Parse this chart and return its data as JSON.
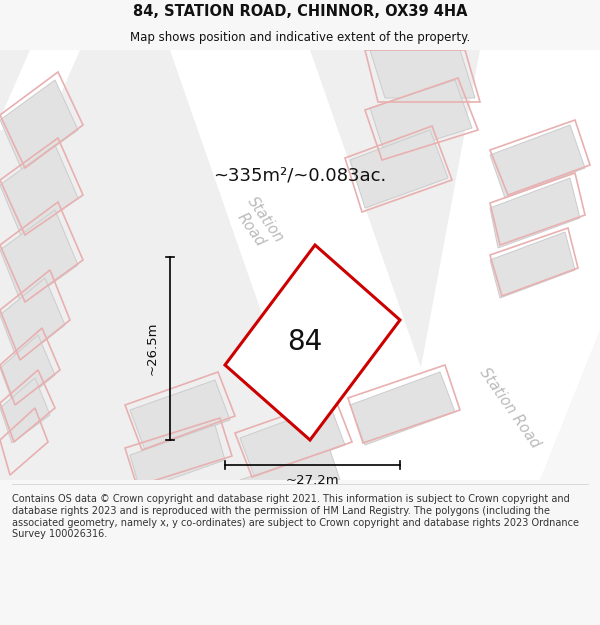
{
  "title": "84, STATION ROAD, CHINNOR, OX39 4HA",
  "subtitle": "Map shows position and indicative extent of the property.",
  "area_label": "~335m²/~0.083ac.",
  "property_number": "84",
  "dim_height": "~26.5m",
  "dim_width": "~27.2m",
  "road_label_top": "Station\nRoad",
  "road_label_right": "Station Road",
  "footer": "Contains OS data © Crown copyright and database right 2021. This information is subject to Crown copyright and database rights 2023 and is reproduced with the permission of HM Land Registry. The polygons (including the associated geometry, namely x, y co-ordinates) are subject to Crown copyright and database rights 2023 Ordnance Survey 100026316.",
  "bg_color": "#f7f7f7",
  "map_bg": "#f7f7f7",
  "road_white": "#ffffff",
  "road_light": "#efefef",
  "building_fill": "#e2e2e2",
  "building_edge": "#cccccc",
  "pink_edge": "#e8b0b0",
  "property_fill": "#ffffff",
  "property_edge": "#cc0000",
  "footer_bg": "#ffffff",
  "text_dark": "#111111",
  "text_gray": "#bbbbbb"
}
